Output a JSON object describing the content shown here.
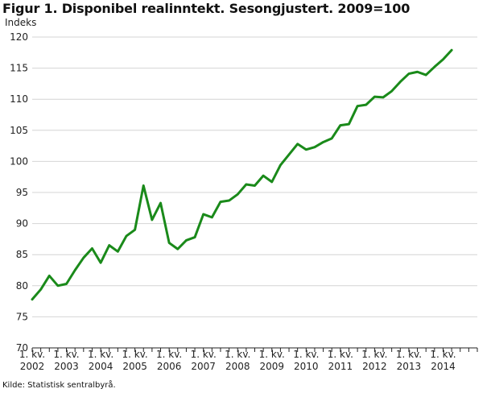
{
  "title": "Figur 1. Disponibel realinntekt. Sesongjustert. 2009=100",
  "source": "Kilde: Statistisk sentralbyrå.",
  "chart_data": {
    "type": "line",
    "title": "Figur 1. Disponibel realinntekt. Sesongjustert. 2009=100",
    "ylabel": "Indeks",
    "xlabel": "",
    "ylim": [
      70,
      120
    ],
    "yticks": [
      70,
      75,
      80,
      85,
      90,
      95,
      100,
      105,
      110,
      115,
      120
    ],
    "grid": "horizontal",
    "line_color": "#1a8a1a",
    "x_tick_top": "1. kv.",
    "x_tick_years": [
      "2002",
      "2003",
      "2004",
      "2005",
      "2006",
      "2007",
      "2008",
      "2009",
      "2010",
      "2011",
      "2012",
      "2013",
      "2014"
    ],
    "x": [
      "2002K1",
      "2002K2",
      "2002K3",
      "2002K4",
      "2003K1",
      "2003K2",
      "2003K3",
      "2003K4",
      "2004K1",
      "2004K2",
      "2004K3",
      "2004K4",
      "2005K1",
      "2005K2",
      "2005K3",
      "2005K4",
      "2006K1",
      "2006K2",
      "2006K3",
      "2006K4",
      "2007K1",
      "2007K2",
      "2007K3",
      "2007K4",
      "2008K1",
      "2008K2",
      "2008K3",
      "2008K4",
      "2009K1",
      "2009K2",
      "2009K3",
      "2009K4",
      "2010K1",
      "2010K2",
      "2010K3",
      "2010K4",
      "2011K1",
      "2011K2",
      "2011K3",
      "2011K4",
      "2012K1",
      "2012K2",
      "2012K3",
      "2012K4",
      "2013K1",
      "2013K2",
      "2013K3",
      "2013K4",
      "2014K1",
      "2014K2"
    ],
    "values": [
      77.8,
      79.4,
      81.6,
      80.0,
      80.3,
      82.5,
      84.5,
      86.0,
      83.7,
      86.5,
      85.5,
      88.0,
      89.0,
      96.1,
      90.6,
      93.3,
      86.9,
      85.9,
      87.3,
      87.8,
      91.5,
      91.0,
      93.5,
      93.7,
      94.7,
      96.3,
      96.1,
      97.7,
      96.7,
      99.4,
      101.1,
      102.8,
      101.9,
      102.3,
      103.1,
      103.7,
      105.8,
      106.0,
      108.9,
      109.1,
      110.4,
      110.3,
      111.3,
      112.8,
      114.1,
      114.4,
      113.9,
      115.2,
      116.4,
      117.9
    ]
  }
}
